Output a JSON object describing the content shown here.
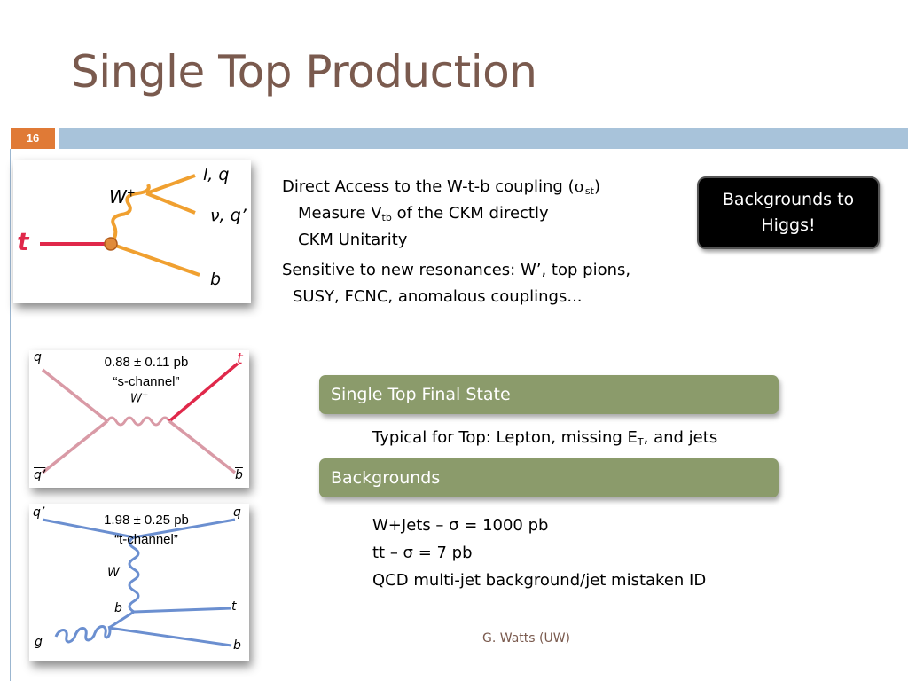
{
  "slide": {
    "title": "Single Top Production",
    "page_number": "16",
    "footer": "G. Watts (UW)"
  },
  "callout": {
    "line1": "Backgrounds to",
    "line2": "Higgs!"
  },
  "points": {
    "p1": "Direct Access to the W-t-b coupling (",
    "p1_sym": "σ",
    "p1_sub": "st",
    "p1_end": ")",
    "p1a": "Measure V",
    "p1a_sub": "tb",
    "p1a_end": " of the CKM directly",
    "p1b": "CKM Unitarity",
    "p2_line1": "Sensitive to new resonances: W’, top pions,",
    "p2_line2": "SUSY, FCNC, anomalous couplings..."
  },
  "final_state": {
    "header": "Single Top Final State",
    "text": "Typical for Top: Lepton, missing E",
    "text_sub": "T",
    "text_end": ", and jets"
  },
  "backgrounds": {
    "header": "Backgrounds",
    "items": [
      "W+Jets – σ = 1000 pb",
      "tt – σ = 7 pb",
      "QCD multi-jet background/jet mistaken ID"
    ]
  },
  "diagrams": {
    "decay": {
      "t": "t",
      "w": "W",
      "w_sup": "+",
      "lq": "l, q",
      "nu": "ν, q’",
      "b": "b"
    },
    "s_channel": {
      "xsec": "0.88 ± 0.11 pb",
      "name": "“s-channel”",
      "q": "q",
      "qbar": "q’",
      "t": "t",
      "bbar": "b",
      "w": "W",
      "w_sup": "+"
    },
    "t_channel": {
      "xsec": "1.98 ± 0.25 pb",
      "name": "“t-channel”",
      "qp": "q’",
      "q": "q",
      "w": "W",
      "b": "b",
      "t": "t",
      "g": "g",
      "bbar": "b"
    }
  },
  "colors": {
    "title": "#7a5a4e",
    "header_bar": "#a8c3da",
    "page_badge": "#e07a36",
    "green_bar": "#8b9b6b",
    "top_line": "#e0284a",
    "w_line": "#f0a030",
    "s_channel_line": "#d99aa6",
    "t_channel_line": "#6b8fd0"
  }
}
